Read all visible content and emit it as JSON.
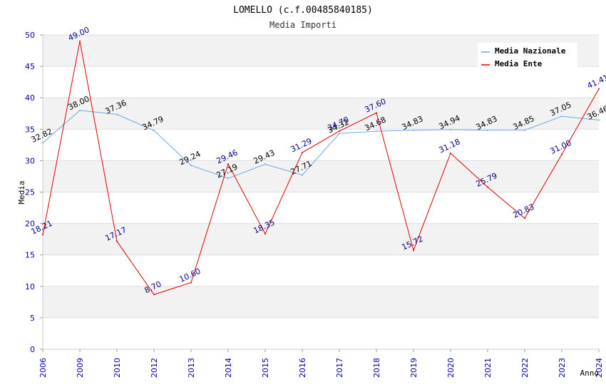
{
  "chart_data": {
    "type": "line",
    "title": "LOMELLO (c.f.00485840185)",
    "subtitle": "Media Importi",
    "xlabel": "Anno",
    "ylabel": "Media",
    "ylim": [
      0,
      50
    ],
    "yticks": [
      0,
      5,
      10,
      15,
      20,
      25,
      30,
      35,
      40,
      45,
      50
    ],
    "categories": [
      "2006",
      "2009",
      "2010",
      "2012",
      "2013",
      "2014",
      "2015",
      "2016",
      "2017",
      "2018",
      "2019",
      "2020",
      "2021",
      "2022",
      "2023",
      "2024"
    ],
    "series": [
      {
        "name": "Media Nazionale",
        "color": "#6fa8e8",
        "values": [
          32.82,
          38.0,
          37.36,
          34.79,
          29.24,
          27.19,
          29.43,
          27.71,
          34.32,
          34.68,
          34.83,
          34.94,
          34.83,
          34.85,
          37.05,
          36.46
        ],
        "labels": [
          "32.82",
          "38.00",
          "37.36",
          "34.79",
          "29.24",
          "27.19",
          "29.43",
          "27.71",
          "34.32",
          "34.68",
          "34.83",
          "34.94",
          "34.83",
          "34.85",
          "37.05",
          "36.46"
        ]
      },
      {
        "name": "Media Ente",
        "color": "#e00000",
        "values": [
          18.21,
          49.0,
          17.17,
          8.7,
          10.6,
          29.46,
          18.35,
          31.29,
          34.7,
          37.6,
          15.72,
          31.18,
          25.79,
          20.83,
          31.0,
          41.41
        ],
        "labels": [
          "18.21",
          "49.00",
          "17.17",
          "8.70",
          "10.60",
          "29.46",
          "18.35",
          "31.29",
          "34.70",
          "37.60",
          "15.72",
          "31.18",
          "25.79",
          "20.83",
          "31.00",
          "41.41"
        ]
      }
    ],
    "grid": true,
    "legend": "top-right"
  }
}
